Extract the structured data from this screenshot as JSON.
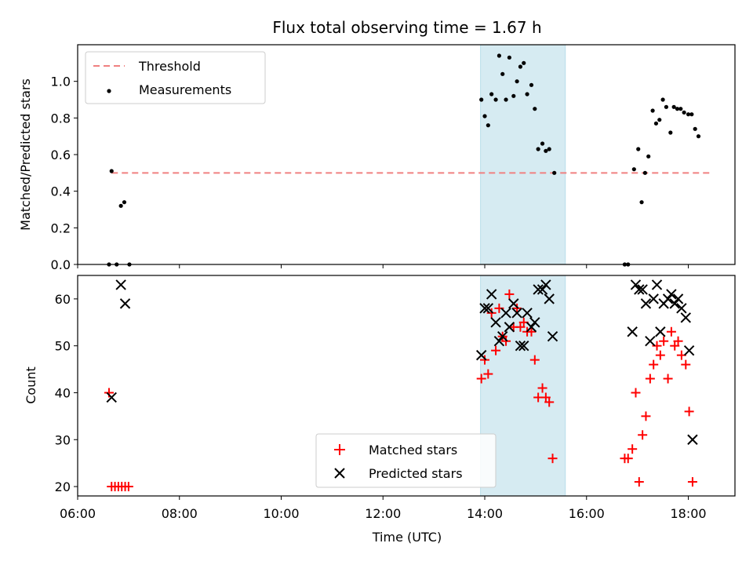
{
  "chart_data": [
    {
      "type": "scatter",
      "title": "Flux total observing time = 1.67 h",
      "ylabel": "Matched/Predicted stars",
      "xlabel": "",
      "xlim": [
        "06:00",
        "18:55"
      ],
      "ylim": [
        0,
        1.2
      ],
      "yticks": [
        "0.0",
        "0.2",
        "0.4",
        "0.6",
        "0.8",
        "1.0"
      ],
      "shaded_interval": [
        "13:55",
        "15:35"
      ],
      "shaded_color": "#add8e6",
      "legend_position": "top-left",
      "threshold": {
        "name": "Threshold",
        "y": 0.5,
        "x": [
          "06:40",
          "18:25"
        ],
        "color": "#f08080",
        "style": "dashed"
      },
      "series": [
        {
          "name": "Measurements",
          "color": "#000000",
          "marker": "dot",
          "points": [
            [
              "06:37",
              0.0
            ],
            [
              "06:40",
              0.51
            ],
            [
              "06:46",
              0.0
            ],
            [
              "06:51",
              0.32
            ],
            [
              "06:55",
              0.34
            ],
            [
              "07:01",
              0.0
            ],
            [
              "13:56",
              0.9
            ],
            [
              "14:00",
              0.81
            ],
            [
              "14:04",
              0.76
            ],
            [
              "14:08",
              0.93
            ],
            [
              "14:13",
              0.9
            ],
            [
              "14:17",
              1.14
            ],
            [
              "14:21",
              1.04
            ],
            [
              "14:25",
              0.9
            ],
            [
              "14:29",
              1.13
            ],
            [
              "14:34",
              0.92
            ],
            [
              "14:38",
              1.0
            ],
            [
              "14:42",
              1.08
            ],
            [
              "14:46",
              1.1
            ],
            [
              "14:50",
              0.93
            ],
            [
              "14:55",
              0.98
            ],
            [
              "14:59",
              0.85
            ],
            [
              "15:03",
              0.63
            ],
            [
              "15:08",
              0.66
            ],
            [
              "15:12",
              0.62
            ],
            [
              "15:16",
              0.63
            ],
            [
              "15:22",
              0.5
            ],
            [
              "16:45",
              0.0
            ],
            [
              "16:49",
              0.0
            ],
            [
              "16:56",
              0.52
            ],
            [
              "17:01",
              0.63
            ],
            [
              "17:05",
              0.34
            ],
            [
              "17:09",
              0.5
            ],
            [
              "17:13",
              0.59
            ],
            [
              "17:18",
              0.84
            ],
            [
              "17:22",
              0.77
            ],
            [
              "17:26",
              0.79
            ],
            [
              "17:30",
              0.9
            ],
            [
              "17:34",
              0.86
            ],
            [
              "17:39",
              0.72
            ],
            [
              "17:43",
              0.86
            ],
            [
              "17:47",
              0.85
            ],
            [
              "17:51",
              0.85
            ],
            [
              "17:55",
              0.83
            ],
            [
              "18:00",
              0.82
            ],
            [
              "18:04",
              0.82
            ],
            [
              "18:08",
              0.74
            ],
            [
              "18:12",
              0.7
            ]
          ]
        }
      ]
    },
    {
      "type": "scatter",
      "title": "",
      "xlabel": "Time (UTC)",
      "ylabel": "Count",
      "xlim": [
        "06:00",
        "18:55"
      ],
      "ylim": [
        18,
        65
      ],
      "xticks": [
        "06:00",
        "08:00",
        "10:00",
        "12:00",
        "14:00",
        "16:00",
        "18:00"
      ],
      "yticks": [
        "20",
        "30",
        "40",
        "50",
        "60"
      ],
      "shaded_interval": [
        "13:55",
        "15:35"
      ],
      "shaded_color": "#add8e6",
      "legend_position": "bottom-center",
      "series": [
        {
          "name": "Matched stars",
          "color": "#ff0000",
          "marker": "plus",
          "points": [
            [
              "06:37",
              40
            ],
            [
              "06:40",
              20
            ],
            [
              "06:44",
              20
            ],
            [
              "06:48",
              20
            ],
            [
              "06:52",
              20
            ],
            [
              "06:56",
              20
            ],
            [
              "07:00",
              20
            ],
            [
              "13:56",
              43
            ],
            [
              "14:00",
              47
            ],
            [
              "14:04",
              44
            ],
            [
              "14:08",
              57
            ],
            [
              "14:13",
              49
            ],
            [
              "14:17",
              58
            ],
            [
              "14:21",
              52
            ],
            [
              "14:25",
              51
            ],
            [
              "14:29",
              61
            ],
            [
              "14:34",
              54
            ],
            [
              "14:38",
              58
            ],
            [
              "14:42",
              54
            ],
            [
              "14:46",
              55
            ],
            [
              "14:50",
              53
            ],
            [
              "14:55",
              53
            ],
            [
              "14:59",
              47
            ],
            [
              "15:03",
              39
            ],
            [
              "15:08",
              41
            ],
            [
              "15:12",
              39
            ],
            [
              "15:16",
              38
            ],
            [
              "15:20",
              26
            ],
            [
              "16:45",
              26
            ],
            [
              "16:49",
              26
            ],
            [
              "16:54",
              28
            ],
            [
              "16:58",
              40
            ],
            [
              "17:02",
              21
            ],
            [
              "17:06",
              31
            ],
            [
              "17:10",
              35
            ],
            [
              "17:15",
              43
            ],
            [
              "17:19",
              46
            ],
            [
              "17:23",
              50
            ],
            [
              "17:27",
              48
            ],
            [
              "17:31",
              51
            ],
            [
              "17:36",
              43
            ],
            [
              "17:40",
              53
            ],
            [
              "17:44",
              50
            ],
            [
              "17:48",
              51
            ],
            [
              "17:52",
              48
            ],
            [
              "17:57",
              46
            ],
            [
              "18:01",
              36
            ],
            [
              "18:05",
              21
            ]
          ]
        },
        {
          "name": "Predicted stars",
          "color": "#000000",
          "marker": "x",
          "points": [
            [
              "06:40",
              39
            ],
            [
              "06:51",
              63
            ],
            [
              "06:56",
              59
            ],
            [
              "13:56",
              48
            ],
            [
              "14:00",
              58
            ],
            [
              "14:04",
              58
            ],
            [
              "14:08",
              61
            ],
            [
              "14:13",
              55
            ],
            [
              "14:17",
              51
            ],
            [
              "14:21",
              52
            ],
            [
              "14:25",
              57
            ],
            [
              "14:29",
              54
            ],
            [
              "14:34",
              59
            ],
            [
              "14:38",
              57
            ],
            [
              "14:42",
              50
            ],
            [
              "14:46",
              50
            ],
            [
              "14:50",
              57
            ],
            [
              "14:55",
              54
            ],
            [
              "14:59",
              55
            ],
            [
              "15:03",
              62
            ],
            [
              "15:08",
              62
            ],
            [
              "15:12",
              63
            ],
            [
              "15:16",
              60
            ],
            [
              "15:20",
              52
            ],
            [
              "16:54",
              53
            ],
            [
              "16:58",
              63
            ],
            [
              "17:02",
              62
            ],
            [
              "17:06",
              62
            ],
            [
              "17:10",
              59
            ],
            [
              "17:15",
              51
            ],
            [
              "17:19",
              60
            ],
            [
              "17:23",
              63
            ],
            [
              "17:27",
              53
            ],
            [
              "17:31",
              59
            ],
            [
              "17:36",
              60
            ],
            [
              "17:40",
              61
            ],
            [
              "17:44",
              59
            ],
            [
              "17:48",
              60
            ],
            [
              "17:52",
              58
            ],
            [
              "17:57",
              56
            ],
            [
              "18:01",
              49
            ],
            [
              "18:05",
              30
            ]
          ]
        }
      ]
    }
  ]
}
